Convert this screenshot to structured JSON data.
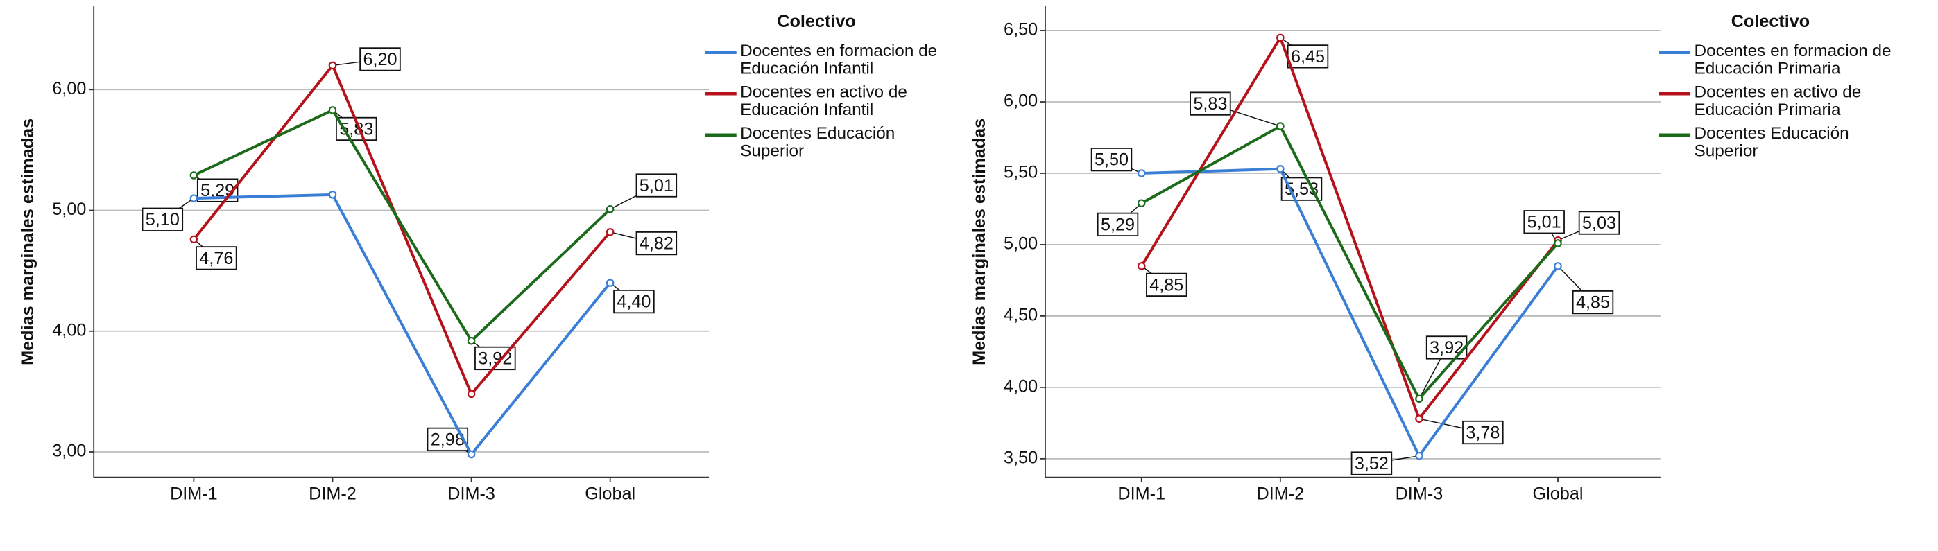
{
  "chart_data": [
    {
      "type": "line",
      "y_label": "Medias marginales estimadas",
      "legend_title": "Colectivo",
      "categories": [
        "DIM-1",
        "DIM-2",
        "DIM-3",
        "Global"
      ],
      "ylim": [
        2.79,
        6.69
      ],
      "yticks": [
        {
          "value": 3,
          "label": "3,00"
        },
        {
          "value": 4,
          "label": "4,00"
        },
        {
          "value": 5,
          "label": "5,00"
        },
        {
          "value": 6,
          "label": "6,00"
        }
      ],
      "grid": true,
      "series": [
        {
          "name": "Docentes en formacion de Educación Infantil",
          "color": "#3a7fd5",
          "values": [
            5.1,
            5.13,
            2.98,
            4.4
          ],
          "value_labels": [
            "5,10",
            null,
            "2,98",
            "4,40"
          ]
        },
        {
          "name": "Docentes en activo de Educación Infantil",
          "color": "#b5121b",
          "values": [
            4.76,
            6.2,
            3.48,
            4.82
          ],
          "value_labels": [
            "4,76",
            "6,20",
            null,
            "4,82"
          ]
        },
        {
          "name": "Docentes Educación Superior",
          "color": "#1b6b1b",
          "values": [
            5.29,
            5.83,
            3.92,
            5.01
          ],
          "value_labels": [
            "5,29",
            "5,83",
            "3,92",
            "5,01"
          ]
        }
      ]
    },
    {
      "type": "line",
      "y_label": "Medias marginales estimadas",
      "legend_title": "Colectivo",
      "categories": [
        "DIM-1",
        "DIM-2",
        "DIM-3",
        "Global"
      ],
      "ylim": [
        3.37,
        6.67
      ],
      "yticks": [
        {
          "value": 3.5,
          "label": "3,50"
        },
        {
          "value": 4,
          "label": "4,00"
        },
        {
          "value": 4.5,
          "label": "4,50"
        },
        {
          "value": 5,
          "label": "5,00"
        },
        {
          "value": 5.5,
          "label": "5,50"
        },
        {
          "value": 6,
          "label": "6,00"
        },
        {
          "value": 6.5,
          "label": "6,50"
        }
      ],
      "grid": true,
      "series": [
        {
          "name": "Docentes en formacion de Educación Primaria",
          "color": "#3a7fd5",
          "values": [
            5.5,
            5.53,
            3.52,
            4.85
          ],
          "value_labels": [
            "5,50",
            "5,53",
            "3,52",
            "4,85"
          ]
        },
        {
          "name": "Docentes en activo de Educación Primaria",
          "color": "#b5121b",
          "values": [
            4.85,
            6.45,
            3.78,
            5.03
          ],
          "value_labels": [
            "4,85",
            "6,45",
            "3,78",
            "5,03"
          ]
        },
        {
          "name": "Docentes Educación Superior",
          "color": "#1b6b1b",
          "values": [
            5.29,
            5.83,
            3.92,
            5.01
          ],
          "value_labels": [
            "5,29",
            "5,83",
            "3,92",
            "5,01"
          ]
        }
      ]
    }
  ]
}
